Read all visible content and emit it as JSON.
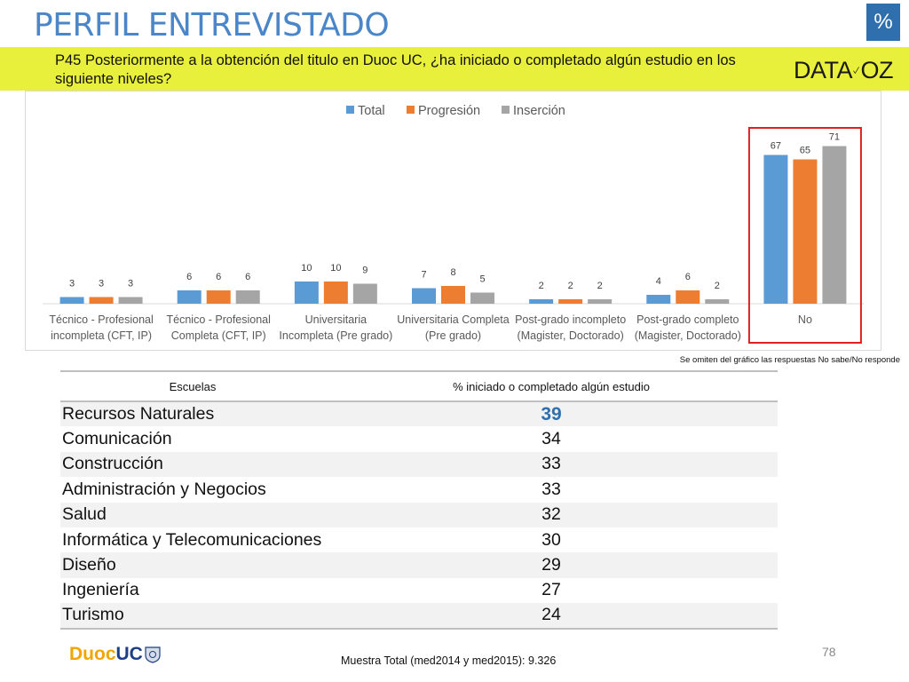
{
  "header": {
    "title": "PERFIL ENTREVISTADO",
    "badge": "%"
  },
  "question": {
    "text": "P45 Posteriormente a la obtención del titulo en Duoc UC, ¿ha iniciado o completado algún estudio en los siguiente niveles?"
  },
  "logo": {
    "left": "DATA",
    "right": "OZ"
  },
  "chart_data": {
    "type": "bar",
    "categories": [
      [
        "Técnico - Profesional",
        "incompleta (CFT, IP)"
      ],
      [
        "Técnico - Profesional",
        "Completa (CFT, IP)"
      ],
      [
        "Universitaria",
        "Incompleta (Pre grado)"
      ],
      [
        "Universitaria Completa",
        "(Pre grado)"
      ],
      [
        "Post-grado incompleto",
        "(Magister, Doctorado)"
      ],
      [
        "Post-grado completo",
        "(Magister, Doctorado)"
      ],
      [
        "No"
      ]
    ],
    "series": [
      {
        "name": "Total",
        "color": "#5b9bd5",
        "values": [
          3,
          6,
          10,
          7,
          2,
          4,
          67
        ]
      },
      {
        "name": "Progresión",
        "color": "#ed7d31",
        "values": [
          3,
          6,
          10,
          8,
          2,
          6,
          65
        ]
      },
      {
        "name": "Inserción",
        "color": "#a5a5a5",
        "values": [
          3,
          6,
          9,
          5,
          2,
          2,
          71
        ]
      }
    ],
    "ylim": [
      0,
      80
    ],
    "legend": "top-center",
    "grid": false,
    "highlight_category": 6,
    "highlight_color": "#e02020"
  },
  "footnote": "Se omiten del gráfico las respuestas  No sabe/No responde",
  "table": {
    "headers": [
      "Escuelas",
      "% iniciado o completado algún estudio"
    ],
    "rows": [
      {
        "school": "Recursos Naturales",
        "value": "39"
      },
      {
        "school": "Comunicación",
        "value": "34"
      },
      {
        "school": "Construcción",
        "value": "33"
      },
      {
        "school": "Administración y Negocios",
        "value": "33"
      },
      {
        "school": "Salud",
        "value": "32"
      },
      {
        "school": "Informática y Telecomunicaciones",
        "value": "30"
      },
      {
        "school": "Diseño",
        "value": "29"
      },
      {
        "school": "Ingeniería",
        "value": "27"
      },
      {
        "school": "Turismo",
        "value": "24"
      }
    ]
  },
  "footer": {
    "brand_left": "Duoc",
    "brand_right": "UC",
    "sample": "Muestra Total (med2014 y med2015): 9.326",
    "page_number": "78"
  }
}
